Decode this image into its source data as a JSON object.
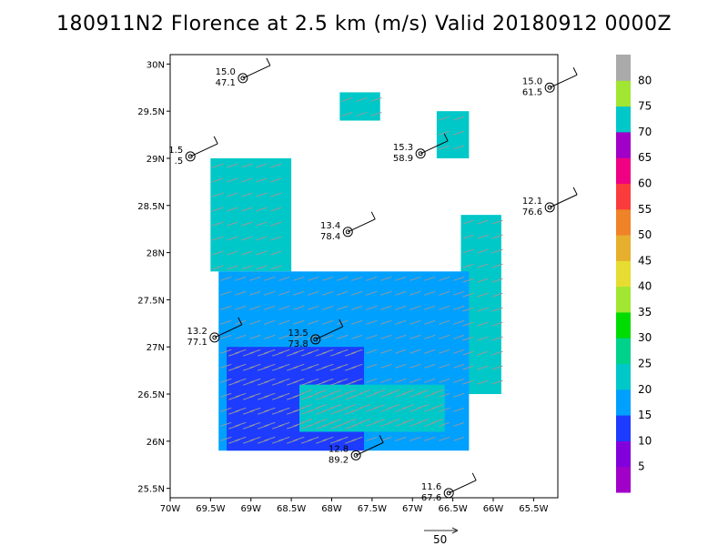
{
  "title": "180911N2 Florence at 2.5 km (m/s) Valid 20180912 0000Z",
  "chart_data": {
    "type": "heatmap",
    "title": "180911N2 Florence at 2.5 km (m/s) Valid 20180912 0000Z",
    "xlim": [
      -70.0,
      -65.2
    ],
    "ylim": [
      25.4,
      30.1
    ],
    "x_ticks": [
      "70W",
      "69.5W",
      "69W",
      "68.5W",
      "68W",
      "67.5W",
      "67W",
      "66.5W",
      "66W",
      "65.5W"
    ],
    "y_ticks": [
      "25.5N",
      "26N",
      "26.5N",
      "27N",
      "27.5N",
      "28N",
      "28.5N",
      "29N",
      "29.5N",
      "30N"
    ],
    "colorbar": {
      "labels": [
        "5",
        "10",
        "15",
        "20",
        "25",
        "30",
        "35",
        "40",
        "45",
        "50",
        "55",
        "60",
        "65",
        "70",
        "75",
        "80"
      ],
      "colors": [
        "#a000c8",
        "#8200dc",
        "#1e3cff",
        "#00a0ff",
        "#00c8c8",
        "#00d28c",
        "#00dc00",
        "#a0e632",
        "#e6dc32",
        "#e6af2d",
        "#f08228",
        "#fa3c3c",
        "#f00082",
        "#a000c8",
        "#00c8c8",
        "#a0e632",
        "#aaaaaa"
      ]
    },
    "wind_field": [
      {
        "region": "north-patch",
        "lon_range": [
          -67.9,
          -67.4
        ],
        "lat_range": [
          29.4,
          29.7
        ],
        "value": 24
      },
      {
        "region": "northeast-patch",
        "lon_range": [
          -66.7,
          -66.3
        ],
        "lat_range": [
          29.0,
          29.5
        ],
        "value": 24
      },
      {
        "region": "northwest-band",
        "lon_range": [
          -69.5,
          -68.5
        ],
        "lat_range": [
          27.8,
          29.0
        ],
        "value": 22
      },
      {
        "region": "east-band",
        "lon_range": [
          -66.4,
          -65.9
        ],
        "lat_range": [
          26.5,
          28.4
        ],
        "value": 24
      },
      {
        "region": "south-ring-outer",
        "lon_range": [
          -69.4,
          -66.3
        ],
        "lat_range": [
          25.9,
          27.8
        ],
        "value": 18
      },
      {
        "region": "southwest-core",
        "lon_range": [
          -69.3,
          -67.6
        ],
        "lat_range": [
          25.9,
          27.0
        ],
        "value": 13
      },
      {
        "region": "south-ring-inner",
        "lon_range": [
          -68.4,
          -66.6
        ],
        "lat_range": [
          26.1,
          26.6
        ],
        "value": 23
      }
    ],
    "observations": [
      {
        "temp": "15.0",
        "pressure": "47.1",
        "lon": -69.1,
        "lat": 29.85
      },
      {
        "temp": "15.0",
        "pressure": "61.5",
        "lon": -65.3,
        "lat": 29.75
      },
      {
        "temp": "1.5",
        "pressure": ".5",
        "lon": -69.75,
        "lat": 29.02
      },
      {
        "temp": "15.3",
        "pressure": "58.9",
        "lon": -66.9,
        "lat": 29.05
      },
      {
        "temp": "12.1",
        "pressure": "76.6",
        "lon": -65.3,
        "lat": 28.48
      },
      {
        "temp": "13.4",
        "pressure": "78.4",
        "lon": -67.8,
        "lat": 28.22
      },
      {
        "temp": "13.2",
        "pressure": "77.1",
        "lon": -69.45,
        "lat": 27.1
      },
      {
        "temp": "13.5",
        "pressure": "73.8",
        "lon": -68.2,
        "lat": 27.08
      },
      {
        "temp": "12.8",
        "pressure": "89.2",
        "lon": -67.7,
        "lat": 25.85
      },
      {
        "temp": "11.6",
        "pressure": "67.6",
        "lon": -66.55,
        "lat": 25.45
      }
    ],
    "reference_vector": "50",
    "xlabel": "",
    "ylabel": ""
  }
}
